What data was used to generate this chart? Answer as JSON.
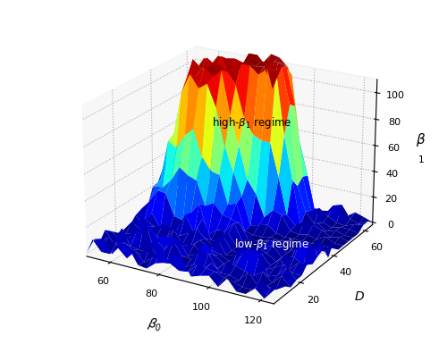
{
  "beta0_range": [
    50,
    125
  ],
  "D_range": [
    5,
    65
  ],
  "beta1_zlim": [
    0,
    110
  ],
  "beta0_ticks": [
    60,
    80,
    100,
    120
  ],
  "D_ticks": [
    20,
    40,
    60
  ],
  "beta1_ticks": [
    0,
    20,
    40,
    60,
    80,
    100
  ],
  "xlabel": "$\\beta_0$",
  "ylabel": "D",
  "zlabel": "$\\beta_1$",
  "annotation_high": "high-$\\beta_1$ regime",
  "annotation_low": "low-$\\beta_1$ regime",
  "colormap": "jet",
  "figsize": [
    5.0,
    3.85
  ],
  "dpi": 100,
  "background_color": "#ffffff",
  "grid_style": "dotted",
  "elev": 22,
  "azim": -60
}
